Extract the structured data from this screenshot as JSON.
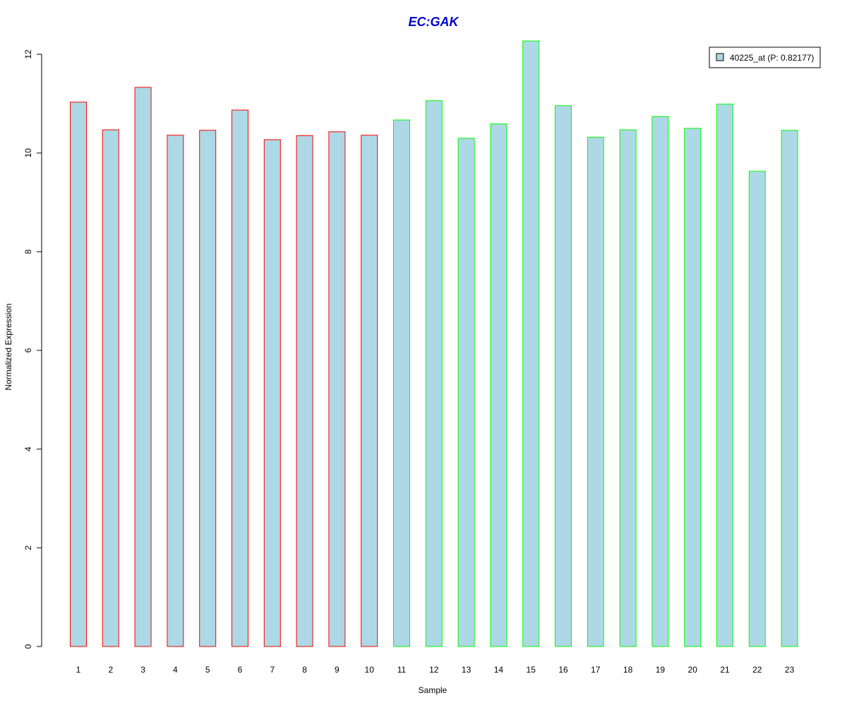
{
  "chart_data": {
    "type": "bar",
    "title": "EC:GAK",
    "xlabel": "Sample",
    "ylabel": "Normalized Expression",
    "categories": [
      "1",
      "2",
      "3",
      "4",
      "5",
      "6",
      "7",
      "8",
      "9",
      "10",
      "11",
      "12",
      "13",
      "14",
      "15",
      "16",
      "17",
      "18",
      "19",
      "20",
      "21",
      "22",
      "23"
    ],
    "series": [
      {
        "name": "40225_at (P: 0.82177)",
        "values": [
          11.03,
          10.47,
          11.33,
          10.36,
          10.46,
          10.87,
          10.27,
          10.35,
          10.43,
          10.36,
          10.67,
          11.06,
          10.3,
          10.59,
          12.27,
          10.96,
          10.32,
          10.47,
          10.74,
          10.5,
          10.99,
          9.63,
          10.46
        ]
      }
    ],
    "groups": [
      1,
      1,
      1,
      1,
      1,
      1,
      1,
      1,
      1,
      1,
      2,
      2,
      2,
      2,
      2,
      2,
      2,
      2,
      2,
      2,
      2,
      2,
      2
    ],
    "ylim": [
      0,
      12.3
    ],
    "yticks": [
      "0",
      "2",
      "4",
      "6",
      "8",
      "10",
      "12"
    ],
    "grid": false,
    "legend_position": "top-right",
    "colors": {
      "bar_fill": "#add8e6",
      "group1_border": "#ff0000",
      "group2_border": "#00ff00",
      "title": "#0000cd",
      "axis": "#000000"
    }
  }
}
